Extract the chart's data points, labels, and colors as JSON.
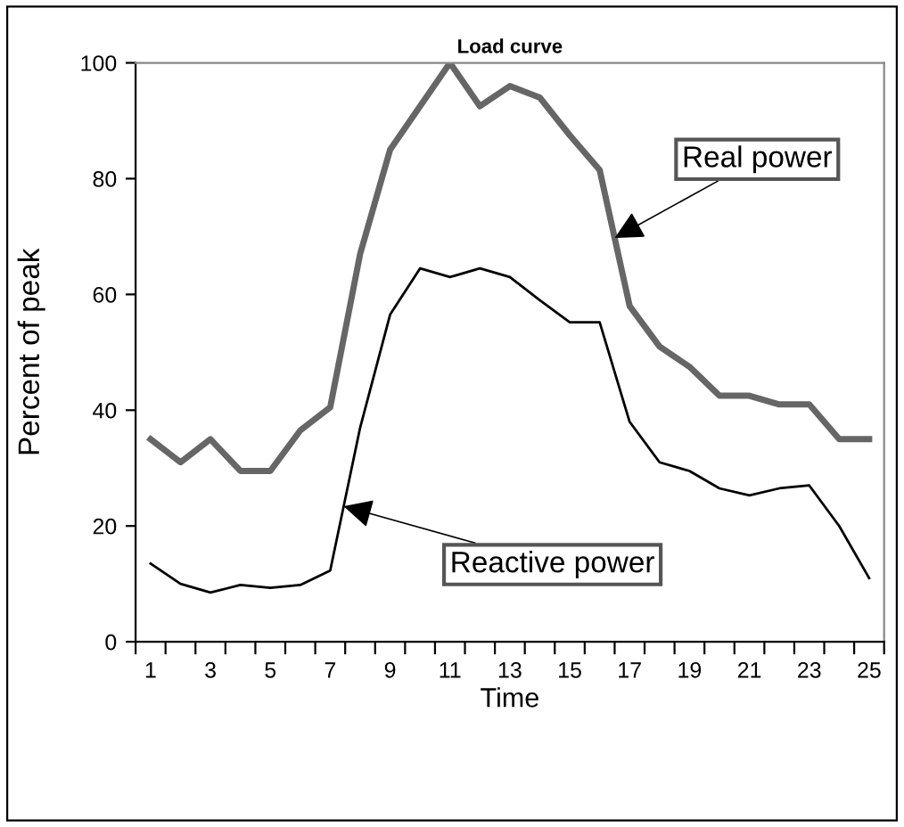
{
  "chart_data": {
    "type": "line",
    "title": "Load curve",
    "xlabel": "Time",
    "ylabel": "Percent of peak",
    "categories": [
      "1",
      null,
      "3",
      null,
      "5",
      null,
      "7",
      null,
      "9",
      null,
      "11",
      null,
      "13",
      null,
      "15",
      null,
      "17",
      null,
      "19",
      null,
      "21",
      null,
      "23",
      null,
      "25"
    ],
    "series": [
      {
        "name": "Real power",
        "color": "#666666",
        "values": [
          35,
          31,
          35,
          29.5,
          29.5,
          36.5,
          40.5,
          67,
          85,
          92.5,
          100,
          92.5,
          96,
          94,
          87.5,
          81.5,
          58,
          51,
          47.5,
          42.5,
          42.5,
          41,
          41,
          35,
          35
        ]
      },
      {
        "name": "Reactive power",
        "color": "#000000",
        "values": [
          13.5,
          10,
          8.5,
          9.8,
          9.3,
          9.8,
          12.3,
          37,
          56.5,
          64.5,
          63,
          64.5,
          63,
          59,
          55.2,
          55.2,
          38,
          31,
          29.5,
          26.5,
          25.3,
          26.5,
          27,
          20,
          11
        ]
      }
    ],
    "ylim": [
      0,
      100
    ],
    "yticks": [
      0,
      20,
      40,
      60,
      80,
      100
    ],
    "grid": false,
    "legend": false,
    "marker": "none",
    "line_style": "solid"
  }
}
